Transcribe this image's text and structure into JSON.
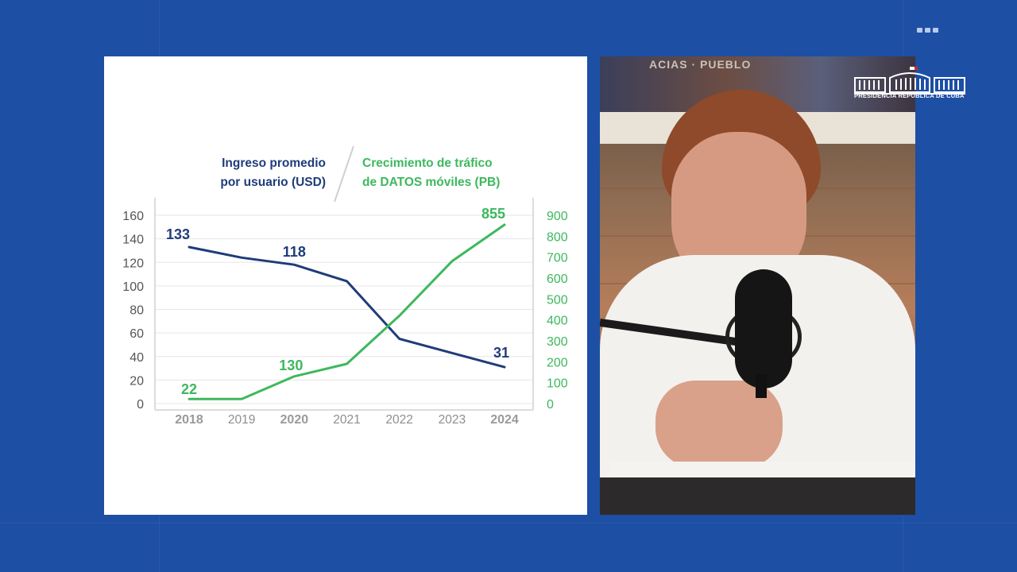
{
  "colors": {
    "background": "#1d4fa4",
    "income_series": "#1f3c7a",
    "traffic_series": "#3db85d",
    "axis_text": "#555555",
    "year_muted": "#8e8e8e",
    "year_bold": "#9a9a9a"
  },
  "logo": {
    "text": "PRESIDENCIA REPÚBLICA DE CUBA",
    "icon": "government-building-logo-icon"
  },
  "video": {
    "banner_text": "ACIAS · PUEBLO"
  },
  "legend": {
    "left_line1": "Ingreso promedio",
    "left_line2": "por usuario (USD)",
    "right_line1": "Crecimiento de tráfico",
    "right_line2": "de DATOS móviles (PB)"
  },
  "chart_data": {
    "type": "line",
    "x": [
      "2018",
      "2019",
      "2020",
      "2021",
      "2022",
      "2023",
      "2024"
    ],
    "bold_years": [
      "2018",
      "2020",
      "2024"
    ],
    "grid": true,
    "y_left": {
      "min": 0,
      "max": 160,
      "ticks": [
        "0",
        "20",
        "40",
        "60",
        "80",
        "100",
        "120",
        "140",
        "160"
      ]
    },
    "y_right": {
      "min": 0,
      "max": 900,
      "ticks": [
        "0",
        "100",
        "200",
        "300",
        "400",
        "500",
        "600",
        "700",
        "800",
        "900"
      ]
    },
    "series": [
      {
        "name": "Ingreso promedio por usuario (USD)",
        "axis": "left",
        "color": "#1f3c7a",
        "values": [
          133,
          124,
          118,
          104,
          55,
          43,
          31
        ]
      },
      {
        "name": "Crecimiento de tráfico de DATOS móviles (PB)",
        "axis": "right",
        "color": "#3db85d",
        "values": [
          22,
          22,
          130,
          190,
          420,
          680,
          855
        ]
      }
    ],
    "data_labels": [
      {
        "series": 0,
        "index": 0,
        "text": "133"
      },
      {
        "series": 0,
        "index": 2,
        "text": "118"
      },
      {
        "series": 0,
        "index": 6,
        "text": "31"
      },
      {
        "series": 1,
        "index": 0,
        "text": "22"
      },
      {
        "series": 1,
        "index": 2,
        "text": "130"
      },
      {
        "series": 1,
        "index": 6,
        "text": "855"
      }
    ]
  }
}
